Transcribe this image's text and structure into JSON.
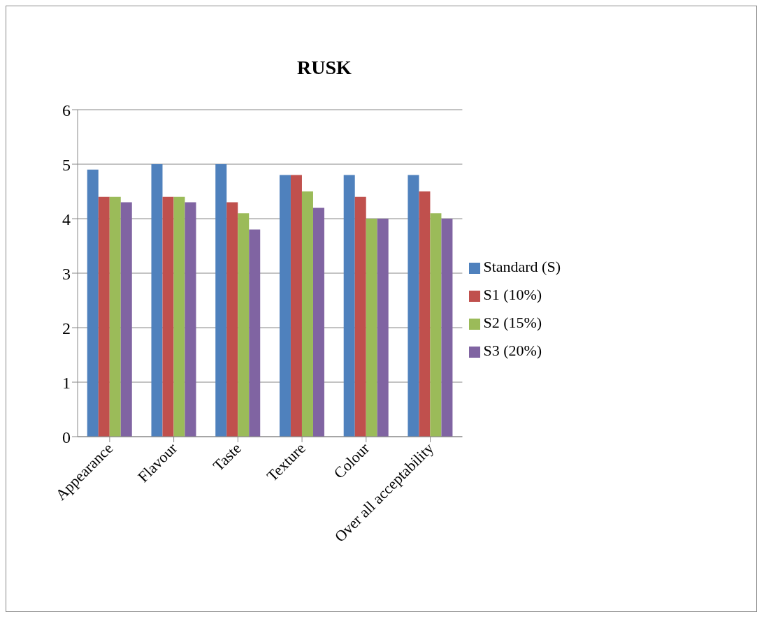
{
  "chart_data": {
    "type": "bar",
    "title": "RUSK",
    "categories": [
      "Appearance",
      "Flavour",
      "Taste",
      "Texture",
      "Colour",
      "Over all acceptability"
    ],
    "series": [
      {
        "name": "Standard (S)",
        "color": "#4f81bd",
        "values": [
          4.9,
          5.0,
          5.0,
          4.8,
          4.8,
          4.8
        ]
      },
      {
        "name": "S1 (10%)",
        "color": "#c0504d",
        "values": [
          4.4,
          4.4,
          4.3,
          4.8,
          4.4,
          4.5
        ]
      },
      {
        "name": "S2 (15%)",
        "color": "#9bbb59",
        "values": [
          4.4,
          4.4,
          4.1,
          4.5,
          4.0,
          4.1
        ]
      },
      {
        "name": "S3 (20%)",
        "color": "#8064a2",
        "values": [
          4.3,
          4.3,
          3.8,
          4.2,
          4.0,
          4.0
        ]
      }
    ],
    "ylim": [
      0,
      6
    ],
    "yticks": [
      0,
      1,
      2,
      3,
      4,
      5,
      6
    ],
    "grid": "y",
    "legend": "right"
  }
}
